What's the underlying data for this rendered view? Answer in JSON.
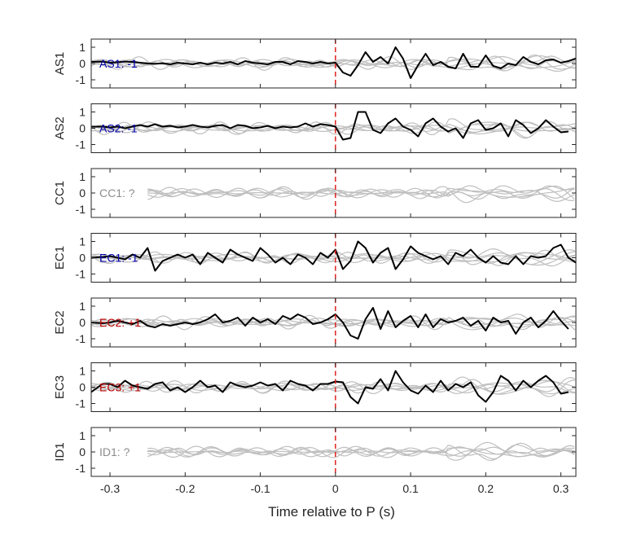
{
  "chart_data": {
    "type": "line",
    "xlabel": "Time relative to P (s)",
    "xlim": [
      -0.325,
      0.32
    ],
    "ylim": [
      -1.5,
      1.5
    ],
    "x_ticks": [
      -0.3,
      -0.2,
      -0.1,
      0,
      0.1,
      0.2,
      0.3
    ],
    "x_tick_labels": [
      "-0.3",
      "-0.2",
      "-0.1",
      "0",
      "0.1",
      "0.2",
      "0.3"
    ],
    "y_ticks": [
      1,
      0,
      -1
    ],
    "y_tick_labels": [
      "1",
      "0",
      "-1"
    ],
    "marker_time": 0,
    "marker_color": "#e0201b",
    "trace_color": "#000000",
    "background_color": "#bfbfbf",
    "panels": [
      {
        "name": "AS1",
        "annotation": "AS1: -1",
        "annotation_color": "#0000aa",
        "has_trace": true,
        "trace": {
          "x": [
            -0.325,
            -0.31,
            -0.3,
            -0.29,
            -0.28,
            -0.27,
            -0.26,
            -0.25,
            -0.24,
            -0.23,
            -0.22,
            -0.21,
            -0.2,
            -0.19,
            -0.18,
            -0.17,
            -0.16,
            -0.15,
            -0.14,
            -0.13,
            -0.12,
            -0.11,
            -0.1,
            -0.09,
            -0.08,
            -0.07,
            -0.06,
            -0.05,
            -0.04,
            -0.03,
            -0.02,
            -0.01,
            0,
            0.01,
            0.02,
            0.03,
            0.04,
            0.05,
            0.06,
            0.07,
            0.08,
            0.09,
            0.1,
            0.11,
            0.12,
            0.13,
            0.14,
            0.15,
            0.16,
            0.17,
            0.18,
            0.19,
            0.2,
            0.21,
            0.22,
            0.23,
            0.24,
            0.25,
            0.26,
            0.27,
            0.28,
            0.29,
            0.3,
            0.31,
            0.32
          ],
          "y": [
            0.1,
            0.12,
            0.05,
            0.08,
            0.12,
            0.1,
            0.05,
            0.0,
            -0.02,
            0.02,
            -0.05,
            0.05,
            0.0,
            -0.05,
            0.05,
            -0.05,
            0.05,
            0.0,
            0.1,
            -0.05,
            0.15,
            0.05,
            0.0,
            -0.05,
            0.1,
            0.1,
            -0.05,
            0.15,
            0.1,
            0.0,
            0.1,
            0.0,
            0.05,
            -0.55,
            -0.75,
            -0.1,
            0.7,
            0.1,
            0.4,
            0.0,
            1.0,
            0.3,
            -0.9,
            -0.1,
            0.6,
            -0.1,
            0.1,
            -0.2,
            -0.3,
            0.6,
            -0.2,
            -0.2,
            0.5,
            -0.15,
            -0.3,
            0.0,
            -0.1,
            0.4,
            0.1,
            -0.05,
            0.2,
            0.25,
            0.05,
            0.15,
            0.3
          ]
        }
      },
      {
        "name": "AS2",
        "annotation": "AS2: -1",
        "annotation_color": "#0000aa",
        "has_trace": true,
        "trace": {
          "x": [
            -0.325,
            -0.31,
            -0.3,
            -0.29,
            -0.28,
            -0.27,
            -0.26,
            -0.25,
            -0.24,
            -0.23,
            -0.22,
            -0.21,
            -0.2,
            -0.19,
            -0.18,
            -0.17,
            -0.16,
            -0.15,
            -0.14,
            -0.13,
            -0.12,
            -0.11,
            -0.1,
            -0.09,
            -0.08,
            -0.07,
            -0.06,
            -0.05,
            -0.04,
            -0.03,
            -0.02,
            -0.01,
            0,
            0.01,
            0.02,
            0.03,
            0.04,
            0.05,
            0.06,
            0.07,
            0.08,
            0.09,
            0.1,
            0.11,
            0.12,
            0.13,
            0.14,
            0.15,
            0.16,
            0.17,
            0.18,
            0.19,
            0.2,
            0.21,
            0.22,
            0.23,
            0.24,
            0.25,
            0.26,
            0.27,
            0.28,
            0.29,
            0.3,
            0.31
          ],
          "y": [
            0.1,
            0.1,
            0.05,
            0.1,
            0.0,
            0.1,
            0.2,
            0.1,
            0.25,
            0.1,
            0.15,
            0.05,
            0.1,
            0.2,
            0.1,
            0.05,
            0.15,
            0.2,
            0.0,
            0.2,
            0.15,
            0.0,
            0.05,
            0.15,
            0.0,
            0.1,
            0.05,
            0.1,
            0.3,
            0.1,
            0.25,
            0.2,
            0.1,
            -0.7,
            -0.6,
            1.0,
            1.0,
            -0.1,
            -0.3,
            0.3,
            0.6,
            0.1,
            -0.1,
            -0.5,
            0.3,
            0.6,
            0.1,
            -0.2,
            0.0,
            -0.6,
            0.3,
            0.5,
            -0.1,
            0.0,
            0.3,
            -0.5,
            0.5,
            0.2,
            -0.3,
            0.0,
            0.5,
            0.1,
            -0.25,
            -0.2
          ]
        }
      },
      {
        "name": "CC1",
        "annotation": "CC1: ?",
        "annotation_color": "#8c8c8c",
        "has_trace": false
      },
      {
        "name": "EC1",
        "annotation": "EC1: -1",
        "annotation_color": "#0000aa",
        "has_trace": true,
        "trace": {
          "x": [
            -0.325,
            -0.31,
            -0.3,
            -0.29,
            -0.28,
            -0.27,
            -0.26,
            -0.25,
            -0.24,
            -0.23,
            -0.22,
            -0.21,
            -0.2,
            -0.19,
            -0.18,
            -0.17,
            -0.16,
            -0.15,
            -0.14,
            -0.13,
            -0.12,
            -0.11,
            -0.1,
            -0.09,
            -0.08,
            -0.07,
            -0.06,
            -0.05,
            -0.04,
            -0.03,
            -0.02,
            -0.01,
            0,
            0.01,
            0.02,
            0.03,
            0.04,
            0.05,
            0.06,
            0.07,
            0.08,
            0.09,
            0.1,
            0.11,
            0.12,
            0.13,
            0.14,
            0.15,
            0.16,
            0.17,
            0.18,
            0.19,
            0.2,
            0.21,
            0.22,
            0.23,
            0.24,
            0.25,
            0.26,
            0.27,
            0.28,
            0.29,
            0.3,
            0.31,
            0.32
          ],
          "y": [
            0.0,
            0.05,
            0.1,
            0.0,
            -0.1,
            0.2,
            0.0,
            0.6,
            -0.8,
            -0.2,
            0.0,
            0.2,
            0.0,
            0.2,
            -0.4,
            0.3,
            0.0,
            -0.3,
            0.5,
            0.2,
            0.0,
            -0.2,
            0.6,
            0.2,
            -0.3,
            0.0,
            -0.4,
            0.2,
            0.0,
            -0.4,
            0.3,
            0.0,
            0.5,
            -0.7,
            -0.2,
            1.0,
            0.6,
            -0.3,
            0.3,
            0.6,
            -0.7,
            -0.1,
            0.7,
            0.3,
            0.1,
            -0.1,
            0.1,
            -0.4,
            0.3,
            0.1,
            0.5,
            0.0,
            -0.3,
            0.1,
            -0.3,
            -0.4,
            0.1,
            -0.4,
            0.1,
            0.0,
            0.1,
            0.6,
            0.8,
            0.0,
            -0.3
          ]
        }
      },
      {
        "name": "EC2",
        "annotation": "EC2: +1",
        "annotation_color": "#bb0000",
        "has_trace": true,
        "trace": {
          "x": [
            -0.325,
            -0.31,
            -0.3,
            -0.29,
            -0.28,
            -0.27,
            -0.26,
            -0.25,
            -0.24,
            -0.23,
            -0.22,
            -0.21,
            -0.2,
            -0.19,
            -0.18,
            -0.17,
            -0.16,
            -0.15,
            -0.14,
            -0.13,
            -0.12,
            -0.11,
            -0.1,
            -0.09,
            -0.08,
            -0.07,
            -0.06,
            -0.05,
            -0.04,
            -0.03,
            -0.02,
            -0.01,
            0,
            0.01,
            0.02,
            0.03,
            0.04,
            0.05,
            0.06,
            0.07,
            0.08,
            0.09,
            0.1,
            0.11,
            0.12,
            0.13,
            0.14,
            0.15,
            0.16,
            0.17,
            0.18,
            0.19,
            0.2,
            0.21,
            0.22,
            0.23,
            0.24,
            0.25,
            0.26,
            0.27,
            0.28,
            0.29,
            0.3,
            0.31
          ],
          "y": [
            0.0,
            -0.05,
            0.0,
            0.1,
            0.0,
            -0.1,
            0.1,
            -0.2,
            -0.3,
            -0.1,
            -0.2,
            -0.1,
            0.0,
            -0.1,
            0.0,
            0.2,
            0.5,
            0.0,
            0.1,
            0.3,
            -0.2,
            0.3,
            0.0,
            0.2,
            -0.1,
            0.4,
            0.2,
            0.5,
            0.3,
            -0.1,
            0.0,
            0.2,
            0.5,
            0.0,
            -0.8,
            -1.0,
            0.2,
            0.9,
            -0.4,
            0.7,
            -0.3,
            0.1,
            0.4,
            -0.3,
            0.5,
            -0.3,
            0.2,
            0.0,
            0.1,
            0.3,
            -0.2,
            0.1,
            -0.5,
            0.3,
            0.0,
            0.1,
            -0.7,
            0.0,
            0.3,
            -0.3,
            0.1,
            0.7,
            0.1,
            -0.4
          ]
        }
      },
      {
        "name": "EC3",
        "annotation": "EC3: +1",
        "annotation_color": "#bb0000",
        "has_trace": true,
        "trace": {
          "x": [
            -0.325,
            -0.31,
            -0.3,
            -0.29,
            -0.28,
            -0.27,
            -0.26,
            -0.25,
            -0.24,
            -0.23,
            -0.22,
            -0.21,
            -0.2,
            -0.19,
            -0.18,
            -0.17,
            -0.16,
            -0.15,
            -0.14,
            -0.13,
            -0.12,
            -0.11,
            -0.1,
            -0.09,
            -0.08,
            -0.07,
            -0.06,
            -0.05,
            -0.04,
            -0.03,
            -0.02,
            -0.01,
            0,
            0.01,
            0.02,
            0.03,
            0.04,
            0.05,
            0.06,
            0.07,
            0.08,
            0.09,
            0.1,
            0.11,
            0.12,
            0.13,
            0.14,
            0.15,
            0.16,
            0.17,
            0.18,
            0.19,
            0.2,
            0.21,
            0.22,
            0.23,
            0.24,
            0.25,
            0.26,
            0.27,
            0.28,
            0.29,
            0.3,
            0.31
          ],
          "y": [
            -0.3,
            0.2,
            0.2,
            0.0,
            0.4,
            0.1,
            0.0,
            -0.1,
            0.2,
            0.3,
            -0.2,
            0.0,
            -0.3,
            0.0,
            0.4,
            0.0,
            0.1,
            -0.3,
            0.3,
            0.1,
            0.0,
            0.1,
            0.3,
            0.1,
            0.2,
            -0.2,
            0.4,
            0.2,
            0.1,
            -0.2,
            0.2,
            0.2,
            0.35,
            0.3,
            -0.6,
            -1.0,
            0.0,
            -0.1,
            0.5,
            -0.2,
            1.0,
            0.3,
            -0.2,
            -0.4,
            0.1,
            -0.3,
            0.4,
            -0.2,
            0.2,
            0.0,
            0.3,
            -0.5,
            -0.9,
            -0.3,
            0.7,
            0.4,
            -0.2,
            0.4,
            0.0,
            0.4,
            0.7,
            0.3,
            -0.4,
            -0.3
          ]
        }
      },
      {
        "name": "ID1",
        "annotation": "ID1: ?",
        "annotation_color": "#8c8c8c",
        "has_trace": false
      }
    ]
  }
}
